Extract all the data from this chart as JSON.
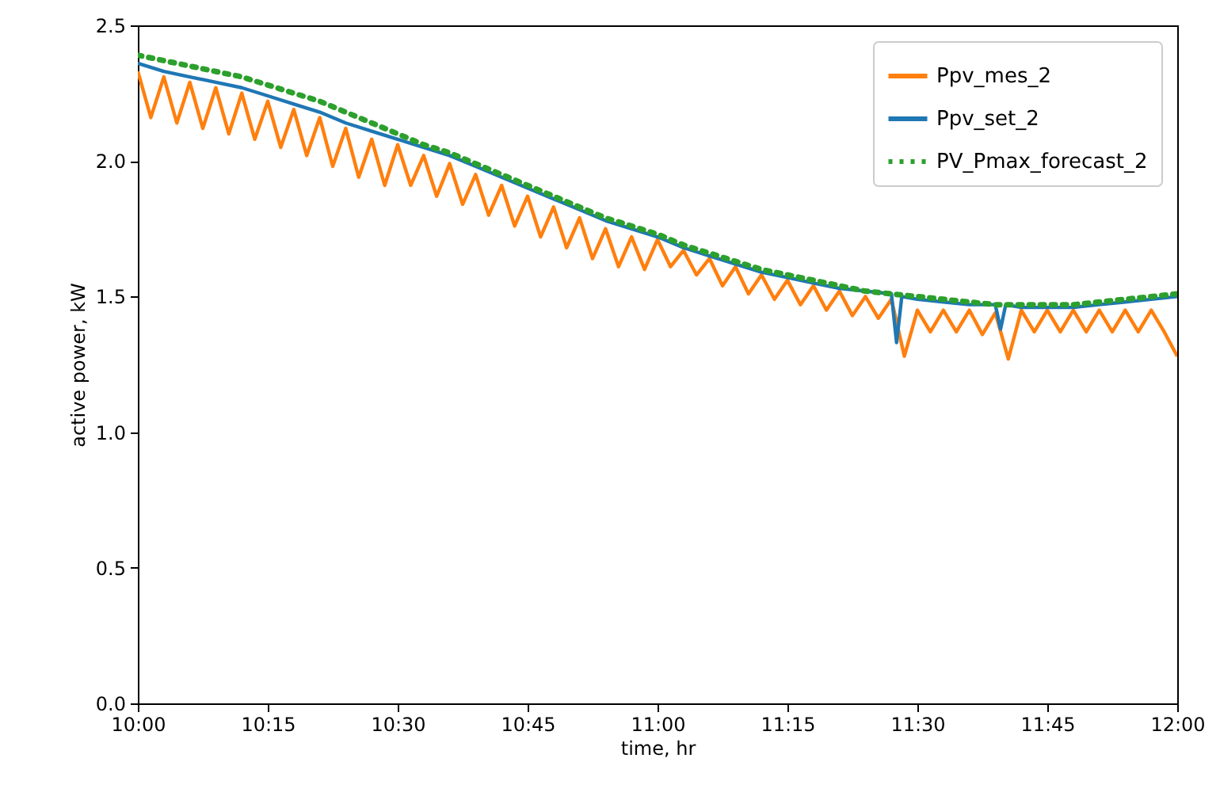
{
  "chart_data": {
    "type": "line",
    "xlabel": "time, hr",
    "ylabel": "active power, kW",
    "xlim": [
      10,
      12
    ],
    "ylim": [
      0,
      2.5
    ],
    "xticks": [
      {
        "value": 10,
        "label": "10:00"
      },
      {
        "value": 10.25,
        "label": "10:15"
      },
      {
        "value": 10.5,
        "label": "10:30"
      },
      {
        "value": 10.75,
        "label": "10:45"
      },
      {
        "value": 11,
        "label": "11:00"
      },
      {
        "value": 11.25,
        "label": "11:15"
      },
      {
        "value": 11.5,
        "label": "11:30"
      },
      {
        "value": 11.75,
        "label": "11:45"
      },
      {
        "value": 12,
        "label": "12:00"
      }
    ],
    "yticks": [
      {
        "value": 0,
        "label": "0.0"
      },
      0.5,
      {
        "value": 1,
        "label": "1.0"
      },
      1.5,
      {
        "value": 2,
        "label": "2.0"
      },
      2.5
    ],
    "grid": false,
    "legend": "top right",
    "series": [
      {
        "name": "Ppv_mes_2",
        "color": "#ff7f0e",
        "line_style": "solid",
        "x": [
          10.0,
          10.025,
          10.05,
          10.075,
          10.1,
          10.125,
          10.15,
          10.175,
          10.2,
          10.225,
          10.25,
          10.275,
          10.3,
          10.325,
          10.35,
          10.375,
          10.4,
          10.425,
          10.45,
          10.475,
          10.5,
          10.525,
          10.55,
          10.575,
          10.6,
          10.625,
          10.65,
          10.675,
          10.7,
          10.725,
          10.75,
          10.775,
          10.8,
          10.825,
          10.85,
          10.875,
          10.9,
          10.925,
          10.95,
          10.975,
          11.0,
          11.025,
          11.05,
          11.075,
          11.1,
          11.125,
          11.15,
          11.175,
          11.2,
          11.225,
          11.25,
          11.275,
          11.3,
          11.325,
          11.35,
          11.375,
          11.4,
          11.425,
          11.45,
          11.475,
          11.5,
          11.525,
          11.55,
          11.575,
          11.6,
          11.625,
          11.65,
          11.675,
          11.7,
          11.725,
          11.75,
          11.775,
          11.8,
          11.825,
          11.85,
          11.875,
          11.9,
          11.925,
          11.95,
          11.975,
          12.0
        ],
        "values": [
          2.33,
          2.16,
          2.31,
          2.14,
          2.29,
          2.12,
          2.27,
          2.1,
          2.25,
          2.08,
          2.22,
          2.05,
          2.19,
          2.02,
          2.16,
          1.98,
          2.12,
          1.94,
          2.08,
          1.91,
          2.06,
          1.91,
          2.02,
          1.87,
          1.99,
          1.84,
          1.95,
          1.8,
          1.91,
          1.76,
          1.87,
          1.72,
          1.83,
          1.68,
          1.79,
          1.64,
          1.75,
          1.61,
          1.72,
          1.6,
          1.71,
          1.61,
          1.67,
          1.58,
          1.64,
          1.54,
          1.61,
          1.51,
          1.58,
          1.49,
          1.56,
          1.47,
          1.54,
          1.45,
          1.52,
          1.43,
          1.5,
          1.42,
          1.49,
          1.28,
          1.45,
          1.37,
          1.45,
          1.37,
          1.45,
          1.36,
          1.44,
          1.27,
          1.45,
          1.37,
          1.45,
          1.37,
          1.45,
          1.37,
          1.45,
          1.37,
          1.45,
          1.37,
          1.45,
          1.37,
          1.28
        ]
      },
      {
        "name": "Ppv_set_2",
        "color": "#1f77b4",
        "line_style": "solid",
        "x": [
          10.0,
          10.05,
          10.1,
          10.15,
          10.2,
          10.25,
          10.3,
          10.35,
          10.4,
          10.45,
          10.5,
          10.55,
          10.6,
          10.65,
          10.7,
          10.75,
          10.8,
          10.85,
          10.9,
          10.95,
          11.0,
          11.05,
          11.1,
          11.15,
          11.2,
          11.25,
          11.3,
          11.35,
          11.4,
          11.45,
          11.46,
          11.47,
          11.5,
          11.55,
          11.6,
          11.65,
          11.66,
          11.67,
          11.7,
          11.75,
          11.8,
          11.85,
          11.9,
          11.95,
          12.0
        ],
        "values": [
          2.36,
          2.33,
          2.31,
          2.29,
          2.27,
          2.24,
          2.21,
          2.18,
          2.14,
          2.11,
          2.08,
          2.05,
          2.02,
          1.98,
          1.94,
          1.9,
          1.86,
          1.82,
          1.78,
          1.75,
          1.72,
          1.68,
          1.65,
          1.62,
          1.59,
          1.57,
          1.55,
          1.53,
          1.52,
          1.51,
          1.33,
          1.5,
          1.49,
          1.48,
          1.47,
          1.47,
          1.38,
          1.47,
          1.46,
          1.46,
          1.46,
          1.47,
          1.48,
          1.49,
          1.5
        ]
      },
      {
        "name": "PV_Pmax_forecast_2",
        "color": "#2ca02c",
        "line_style": "dotted",
        "x": [
          10.0,
          10.05,
          10.1,
          10.15,
          10.2,
          10.25,
          10.3,
          10.35,
          10.4,
          10.45,
          10.5,
          10.55,
          10.6,
          10.65,
          10.7,
          10.75,
          10.8,
          10.85,
          10.9,
          10.95,
          11.0,
          11.05,
          11.1,
          11.15,
          11.2,
          11.25,
          11.3,
          11.35,
          11.4,
          11.45,
          11.5,
          11.55,
          11.6,
          11.65,
          11.7,
          11.75,
          11.8,
          11.85,
          11.9,
          11.95,
          12.0
        ],
        "values": [
          2.39,
          2.37,
          2.35,
          2.33,
          2.31,
          2.28,
          2.25,
          2.22,
          2.18,
          2.14,
          2.1,
          2.06,
          2.03,
          1.99,
          1.95,
          1.91,
          1.87,
          1.83,
          1.79,
          1.76,
          1.73,
          1.69,
          1.66,
          1.63,
          1.6,
          1.58,
          1.56,
          1.54,
          1.52,
          1.51,
          1.5,
          1.49,
          1.48,
          1.47,
          1.47,
          1.47,
          1.47,
          1.48,
          1.49,
          1.5,
          1.51
        ]
      }
    ]
  }
}
